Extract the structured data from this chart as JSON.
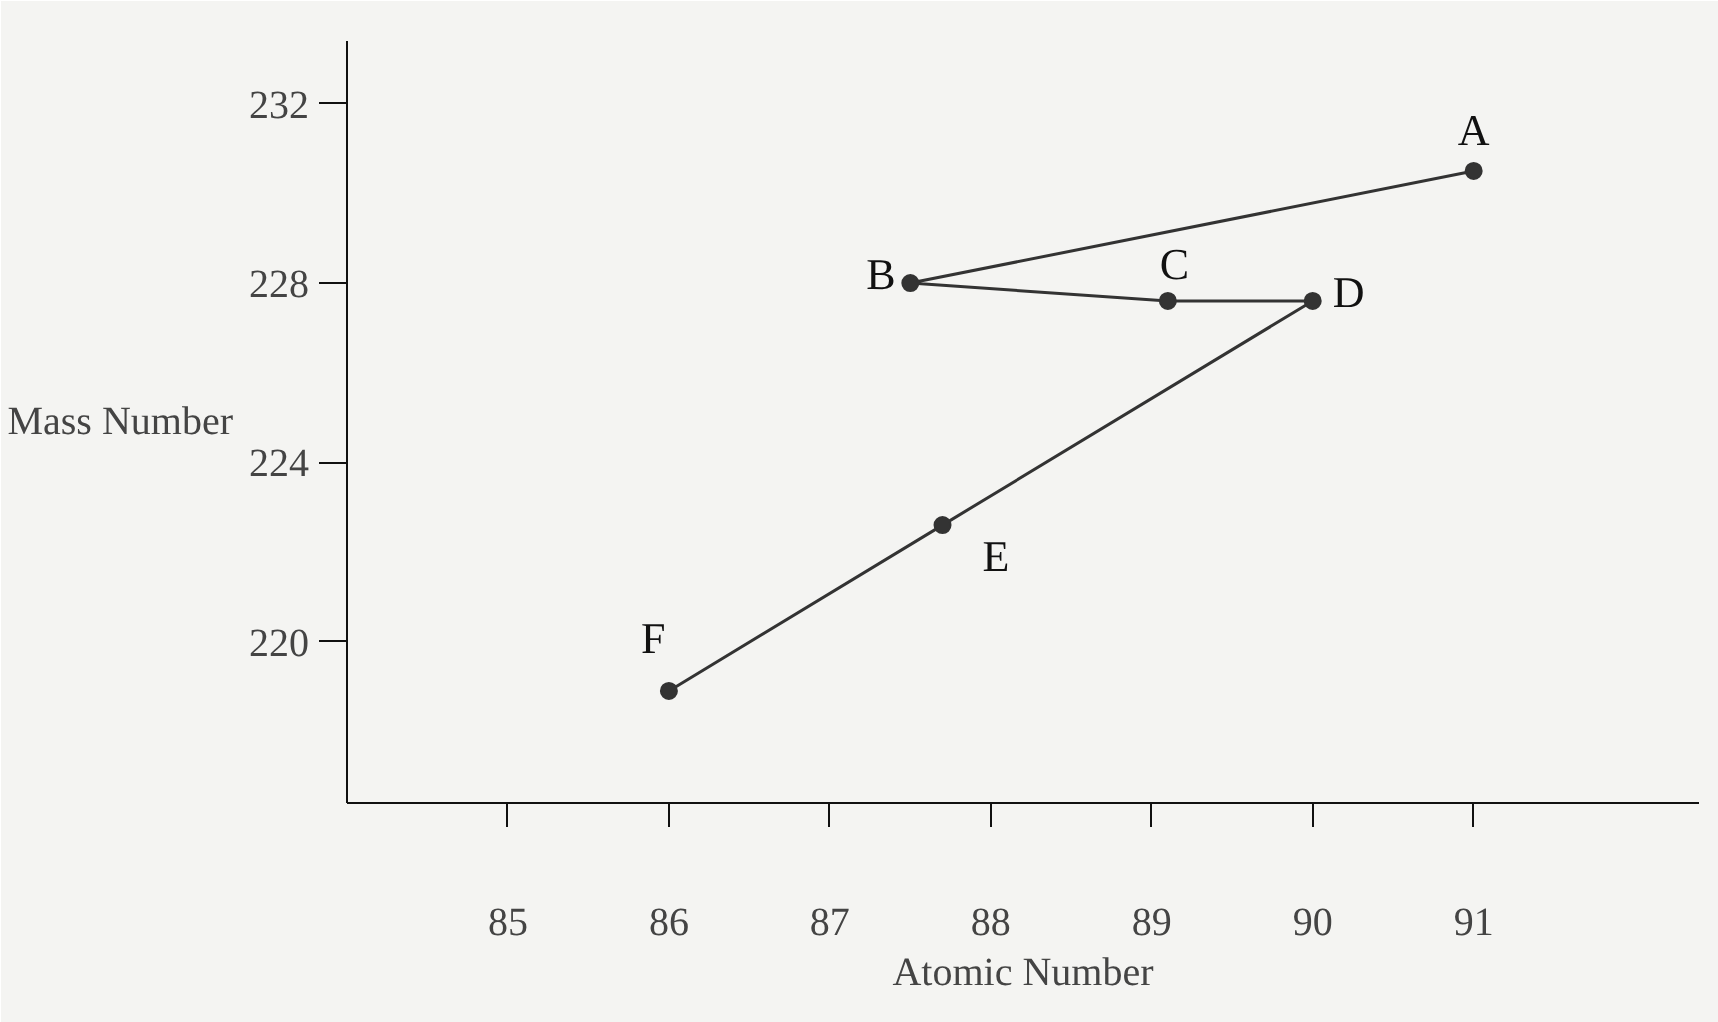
{
  "chart_data": {
    "type": "line",
    "xlabel": "Atomic Number",
    "ylabel": "Mass Number",
    "x": [
      91,
      87.5,
      89.1,
      90,
      87.7,
      86
    ],
    "series": [
      {
        "color": "#333333",
        "values": [
          230.5,
          228,
          227.6,
          227.6,
          222.6,
          218.9
        ]
      }
    ],
    "annotations": [
      {
        "text": "A",
        "x": 91,
        "y": 230.5
      },
      {
        "text": "B",
        "x": 87.5,
        "y": 228
      },
      {
        "text": "C",
        "x": 89.1,
        "y": 227.6
      },
      {
        "text": "D",
        "x": 90,
        "y": 227.6
      },
      {
        "text": "E",
        "x": 87.7,
        "y": 222.6
      },
      {
        "text": "F",
        "x": 86,
        "y": 218.9
      }
    ],
    "xlim": [
      84,
      92.4
    ],
    "ylim": [
      216.4,
      233.4
    ],
    "xticks": [
      85,
      86,
      87,
      88,
      89,
      90,
      91
    ],
    "yticks": [
      220,
      224,
      228,
      232
    ],
    "grid": false,
    "marker": "circle",
    "line_style": "solid"
  }
}
